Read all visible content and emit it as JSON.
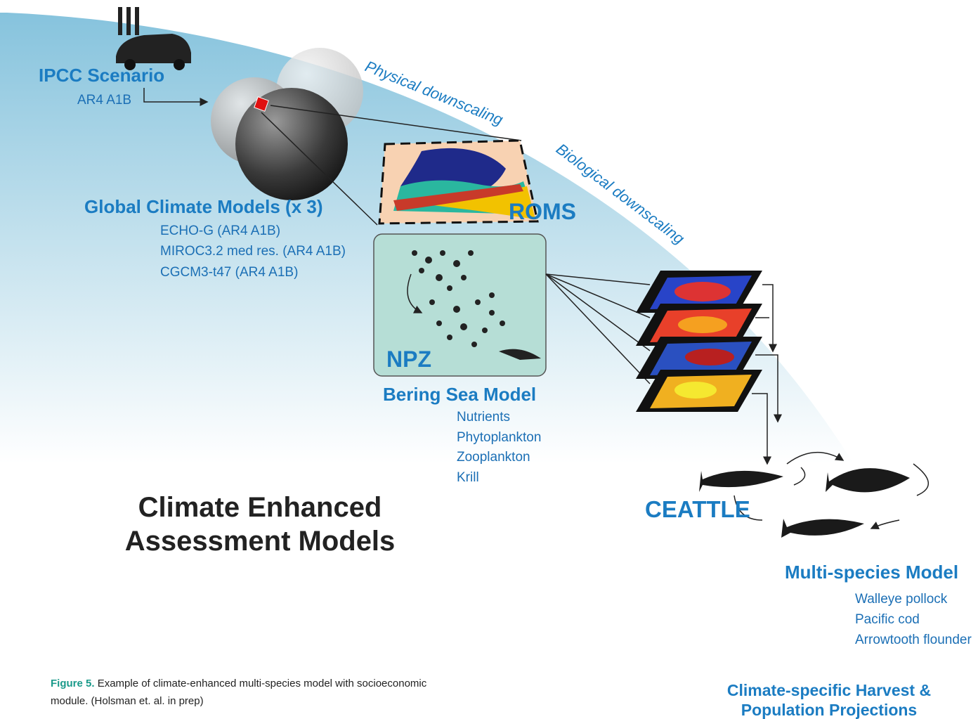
{
  "ipcc": {
    "title": "IPCC Scenario",
    "subtitle": "AR4 A1B"
  },
  "downscaling": {
    "physical": "Physical downscaling",
    "biological": "Biological downscaling"
  },
  "global_models": {
    "title": "Global Climate Models (x 3)",
    "items": [
      "ECHO-G (AR4 A1B)",
      "MIROC3.2 med res. (AR4 A1B)",
      "CGCM3-t47 (AR4 A1B)"
    ]
  },
  "roms": "ROMS",
  "npz": "NPZ",
  "bering": {
    "title": "Bering Sea Model",
    "items": [
      "Nutrients",
      "Phytoplankton",
      "Zooplankton",
      "Krill"
    ]
  },
  "main_title": [
    "Climate Enhanced",
    "Assessment Models"
  ],
  "ceattle": "CEATTLE",
  "multispecies": {
    "title": "Multi-species Model",
    "items": [
      "Walleye pollock",
      "Pacific cod",
      "Arrowtooth flounder"
    ]
  },
  "caption": {
    "label": "Figure 5.",
    "line1": "Example of climate-enhanced multi-species model with socioeconomic",
    "line2": "module. (Holsman et. al. in prep)"
  },
  "projections": [
    "Climate-specific Harvest &",
    "Population Projections"
  ]
}
